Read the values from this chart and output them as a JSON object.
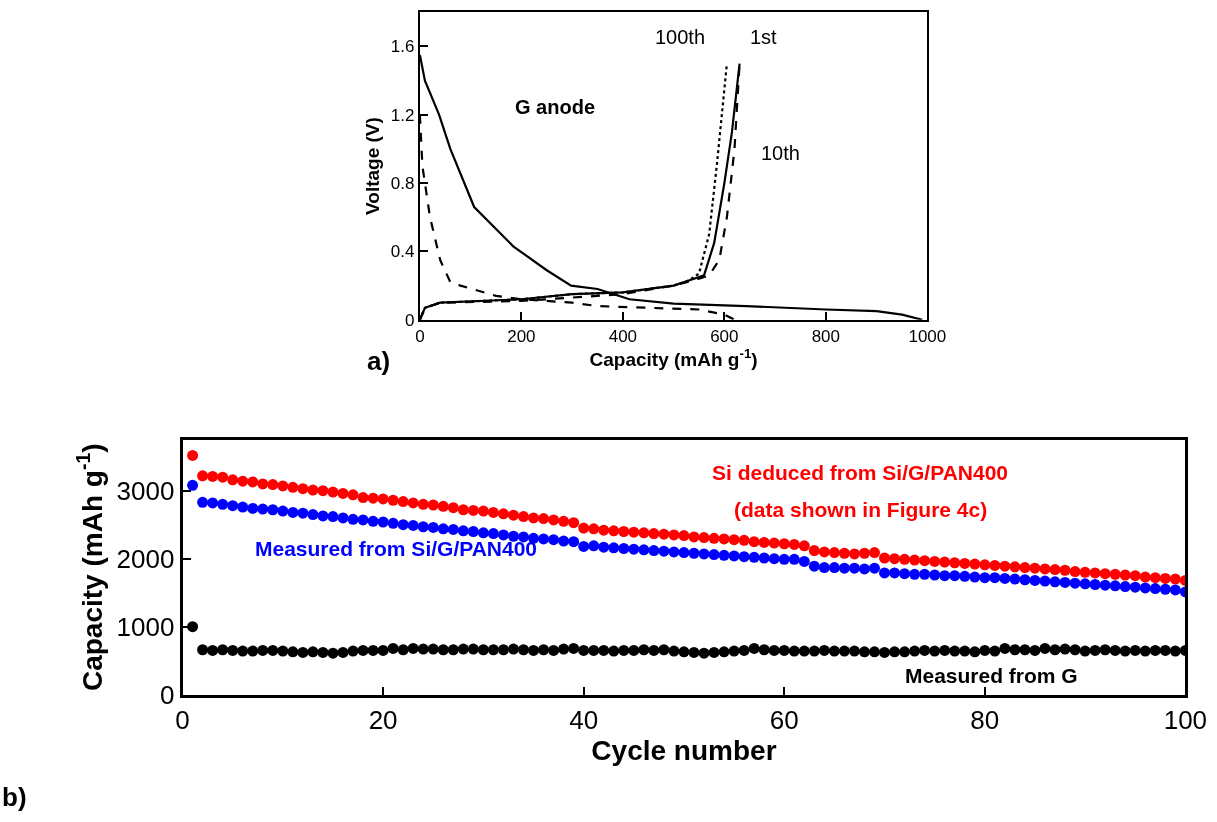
{
  "chart_data": [
    {
      "type": "line",
      "xlabel": "Capacity (mAh g$^{-1}$)",
      "ylabel": "Voltage (V)",
      "xlim": [
        0,
        1000
      ],
      "ylim": [
        0,
        1.8
      ],
      "xticks": [
        0,
        200,
        400,
        600,
        800,
        1000
      ],
      "yticks": [
        0,
        0.4,
        0.8,
        1.2,
        1.6
      ],
      "marker": "none",
      "series": [
        {
          "color": "#000000",
          "line_style": "solid",
          "x": [
            0,
            10,
            38,
            60,
            107,
            184,
            250,
            298,
            350,
            413,
            500,
            643,
            800,
            900,
            950,
            990
          ],
          "values": [
            1.55,
            1.4,
            1.2,
            1.0,
            0.66,
            0.43,
            0.29,
            0.2,
            0.18,
            0.12,
            0.095,
            0.08,
            0.06,
            0.05,
            0.03,
            0
          ]
        },
        {
          "color": "#000000",
          "line_style": "solid",
          "x": [
            0,
            10,
            40,
            200,
            300,
            400,
            500,
            530,
            560,
            580,
            600,
            615,
            630
          ],
          "values": [
            0,
            0.07,
            0.1,
            0.12,
            0.15,
            0.16,
            0.2,
            0.23,
            0.26,
            0.45,
            0.8,
            1.1,
            1.5
          ]
        },
        {
          "color": "#000000",
          "line_style": "dashed",
          "x": [
            0,
            5,
            20,
            40,
            60,
            80,
            150,
            200,
            300,
            350,
            450,
            550,
            600,
            620
          ],
          "values": [
            1.2,
            0.9,
            0.6,
            0.35,
            0.22,
            0.2,
            0.14,
            0.12,
            0.1,
            0.08,
            0.07,
            0.06,
            0.03,
            0
          ]
        },
        {
          "color": "#000000",
          "line_style": "dashed",
          "x": [
            0,
            10,
            40,
            200,
            300,
            400,
            500,
            540,
            570,
            590,
            605,
            620,
            630
          ],
          "values": [
            0,
            0.07,
            0.1,
            0.11,
            0.13,
            0.15,
            0.2,
            0.23,
            0.26,
            0.35,
            0.6,
            1.0,
            1.5
          ]
        },
        {
          "color": "#000000",
          "line_style": "dotted",
          "x": [
            0,
            10,
            40,
            200,
            300,
            400,
            500,
            530,
            550,
            570,
            585,
            595,
            605
          ],
          "values": [
            0,
            0.07,
            0.1,
            0.12,
            0.15,
            0.16,
            0.2,
            0.23,
            0.27,
            0.5,
            0.9,
            1.2,
            1.5
          ]
        }
      ],
      "annotations": [
        "G anode",
        "100th",
        "1st",
        "10th",
        "a)"
      ]
    },
    {
      "type": "scatter",
      "xlabel": "Cycle number",
      "ylabel": "Capacity (mAh g$^{-1}$)",
      "xlim": [
        0,
        100
      ],
      "ylim": [
        0,
        3750
      ],
      "xticks": [
        0,
        20,
        40,
        60,
        80,
        100
      ],
      "yticks": [
        0,
        1000,
        2000,
        3000
      ],
      "marker": "circle",
      "x": [
        1,
        2,
        3,
        4,
        5,
        6,
        7,
        8,
        9,
        10,
        11,
        12,
        13,
        14,
        15,
        16,
        17,
        18,
        19,
        20,
        21,
        22,
        23,
        24,
        25,
        26,
        27,
        28,
        29,
        30,
        31,
        32,
        33,
        34,
        35,
        36,
        37,
        38,
        39,
        40,
        41,
        42,
        43,
        44,
        45,
        46,
        47,
        48,
        49,
        50,
        51,
        52,
        53,
        54,
        55,
        56,
        57,
        58,
        59,
        60,
        61,
        62,
        63,
        64,
        65,
        66,
        67,
        68,
        69,
        70,
        71,
        72,
        73,
        74,
        75,
        76,
        77,
        78,
        79,
        80,
        81,
        82,
        83,
        84,
        85,
        86,
        87,
        88,
        89,
        90,
        91,
        92,
        93,
        94,
        95,
        96,
        97,
        98,
        99,
        100
      ],
      "series": [
        {
          "color": "#ff0000",
          "values": [
            3520,
            3220,
            3210,
            3200,
            3160,
            3140,
            3130,
            3100,
            3090,
            3070,
            3050,
            3030,
            3010,
            3000,
            2980,
            2960,
            2940,
            2900,
            2890,
            2880,
            2860,
            2840,
            2820,
            2800,
            2790,
            2770,
            2750,
            2720,
            2710,
            2700,
            2680,
            2660,
            2640,
            2620,
            2600,
            2590,
            2570,
            2550,
            2530,
            2450,
            2440,
            2420,
            2410,
            2400,
            2390,
            2380,
            2370,
            2360,
            2350,
            2340,
            2320,
            2310,
            2300,
            2290,
            2280,
            2270,
            2250,
            2240,
            2230,
            2220,
            2210,
            2190,
            2120,
            2100,
            2090,
            2080,
            2070,
            2080,
            2090,
            2010,
            2000,
            1990,
            1980,
            1970,
            1960,
            1950,
            1940,
            1930,
            1920,
            1910,
            1900,
            1890,
            1880,
            1870,
            1860,
            1850,
            1840,
            1830,
            1810,
            1800,
            1790,
            1780,
            1770,
            1760,
            1750,
            1730,
            1720,
            1710,
            1700,
            1680
          ]
        },
        {
          "color": "#0000ff",
          "values": [
            3080,
            2830,
            2820,
            2800,
            2780,
            2760,
            2740,
            2730,
            2720,
            2700,
            2680,
            2670,
            2650,
            2630,
            2620,
            2600,
            2580,
            2570,
            2550,
            2540,
            2520,
            2500,
            2490,
            2470,
            2460,
            2440,
            2430,
            2410,
            2400,
            2380,
            2370,
            2350,
            2330,
            2320,
            2300,
            2290,
            2280,
            2260,
            2250,
            2180,
            2190,
            2170,
            2160,
            2150,
            2140,
            2130,
            2120,
            2110,
            2100,
            2090,
            2080,
            2070,
            2060,
            2050,
            2040,
            2030,
            2020,
            2010,
            2000,
            1990,
            1990,
            1960,
            1890,
            1870,
            1870,
            1860,
            1860,
            1850,
            1860,
            1790,
            1790,
            1780,
            1770,
            1770,
            1760,
            1750,
            1750,
            1740,
            1730,
            1720,
            1720,
            1710,
            1700,
            1690,
            1680,
            1670,
            1660,
            1650,
            1640,
            1630,
            1620,
            1610,
            1600,
            1590,
            1580,
            1570,
            1560,
            1550,
            1540,
            1510
          ]
        },
        {
          "color": "#000000",
          "values": [
            1000,
            660,
            650,
            660,
            650,
            640,
            640,
            650,
            650,
            640,
            630,
            620,
            630,
            620,
            610,
            620,
            640,
            650,
            650,
            650,
            680,
            660,
            680,
            670,
            670,
            660,
            660,
            670,
            670,
            660,
            660,
            660,
            670,
            660,
            650,
            660,
            650,
            670,
            680,
            650,
            650,
            650,
            640,
            650,
            650,
            660,
            650,
            660,
            640,
            630,
            620,
            610,
            620,
            630,
            640,
            650,
            680,
            660,
            650,
            650,
            640,
            640,
            640,
            650,
            640,
            640,
            640,
            630,
            630,
            620,
            630,
            630,
            640,
            650,
            640,
            650,
            640,
            640,
            630,
            650,
            640,
            680,
            660,
            660,
            650,
            680,
            660,
            670,
            660,
            640,
            650,
            660,
            650,
            640,
            650,
            640,
            650,
            650,
            640,
            650
          ]
        }
      ],
      "annotations": [
        "Si deduced from Si/G/PAN400",
        "(data shown in Figure 4c)",
        "Measured from Si/G/PAN400",
        "Measured from G",
        "b)"
      ]
    }
  ]
}
